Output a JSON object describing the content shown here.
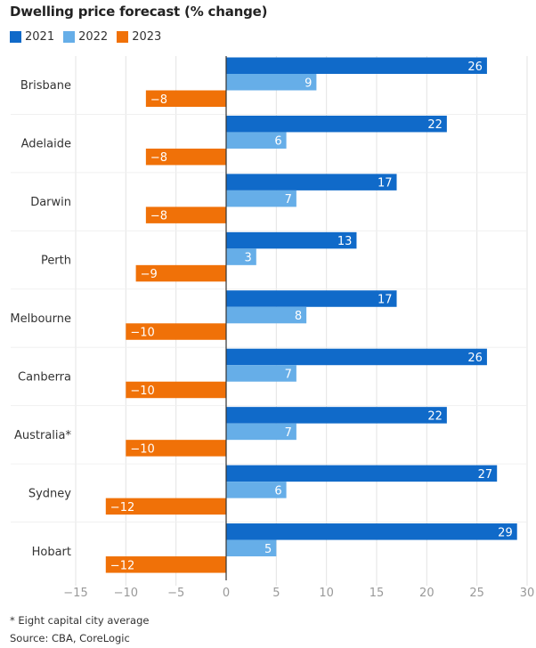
{
  "chart_data": {
    "type": "bar",
    "orientation": "horizontal",
    "title": "Dwelling price forecast (% change)",
    "xlabel": "",
    "ylabel": "",
    "xlim": [
      -15,
      30
    ],
    "xticks": [
      -15,
      -10,
      -5,
      0,
      5,
      10,
      15,
      20,
      25,
      30
    ],
    "xtick_labels": [
      "−15",
      "−10",
      "−5",
      "0",
      "5",
      "10",
      "15",
      "20",
      "25",
      "30"
    ],
    "grid": true,
    "legend_position": "top-left",
    "categories": [
      "Brisbane",
      "Adelaide",
      "Darwin",
      "Perth",
      "Melbourne",
      "Canberra",
      "Australia*",
      "Sydney",
      "Hobart"
    ],
    "series": [
      {
        "name": "2021",
        "color": "#106ac9",
        "values": [
          26,
          22,
          17,
          13,
          17,
          26,
          22,
          27,
          29
        ]
      },
      {
        "name": "2022",
        "color": "#66aee8",
        "values": [
          9,
          6,
          7,
          3,
          8,
          7,
          7,
          6,
          5
        ]
      },
      {
        "name": "2023",
        "color": "#f07108",
        "values": [
          -8,
          -8,
          -8,
          -9,
          -10,
          -10,
          -10,
          -12,
          -12
        ]
      }
    ]
  },
  "footnotes": {
    "note": "* Eight capital city average",
    "source": "Source: CBA, CoreLogic"
  }
}
